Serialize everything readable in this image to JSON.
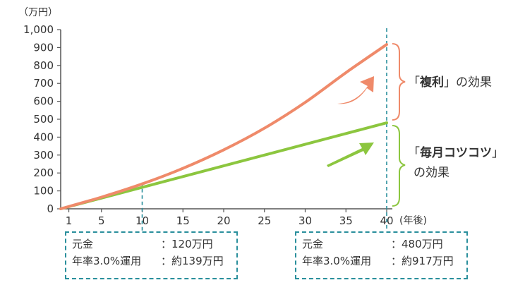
{
  "chart_data": {
    "type": "line",
    "y_unit": "（万円）",
    "x_unit": "(年後)",
    "xlim": [
      0,
      40
    ],
    "ylim": [
      0,
      1000
    ],
    "x_ticks": [
      {
        "value": 1,
        "label": "1"
      },
      {
        "value": 5,
        "label": "5"
      },
      {
        "value": 10,
        "label": "10"
      },
      {
        "value": 15,
        "label": "15"
      },
      {
        "value": 20,
        "label": "20"
      },
      {
        "value": 25,
        "label": "25"
      },
      {
        "value": 30,
        "label": "30"
      },
      {
        "value": 35,
        "label": "35"
      },
      {
        "value": 40,
        "label": "40"
      }
    ],
    "y_ticks": [
      {
        "value": 0,
        "label": "0"
      },
      {
        "value": 100,
        "label": "100"
      },
      {
        "value": 200,
        "label": "200"
      },
      {
        "value": 300,
        "label": "300"
      },
      {
        "value": 400,
        "label": "400"
      },
      {
        "value": 500,
        "label": "500"
      },
      {
        "value": 600,
        "label": "600"
      },
      {
        "value": 700,
        "label": "700"
      },
      {
        "value": 800,
        "label": "800"
      },
      {
        "value": 900,
        "label": "900"
      },
      {
        "value": 1000,
        "label": "1,000"
      }
    ],
    "series": [
      {
        "key": "compound",
        "color": "#ef8a6a",
        "x": [
          0,
          5,
          10,
          15,
          20,
          25,
          30,
          35,
          40
        ],
        "values": [
          0,
          65,
          139,
          226,
          329,
          450,
          594,
          760,
          917
        ]
      },
      {
        "key": "simple",
        "color": "#8cc63f",
        "x": [
          0,
          5,
          10,
          15,
          20,
          25,
          30,
          35,
          40
        ],
        "values": [
          0,
          60,
          120,
          180,
          240,
          300,
          360,
          420,
          480
        ]
      }
    ],
    "reference_x": [
      10,
      40
    ],
    "annotations": {
      "compound_open": "「",
      "compound_bold": "複利",
      "compound_close": "」の効果",
      "simple_open": "「",
      "simple_bold": "毎月コツコツ",
      "simple_close": "」",
      "simple_line2": "の効果"
    },
    "boxes": [
      {
        "row1_label": "元金",
        "row1_value": "：120万円",
        "row2_label": "年率3.0%運用",
        "row2_value": "：約139万円"
      },
      {
        "row1_label": "元金",
        "row1_value": "：480万円",
        "row2_label": "年率3.0%運用",
        "row2_value": "：約917万円"
      }
    ]
  }
}
